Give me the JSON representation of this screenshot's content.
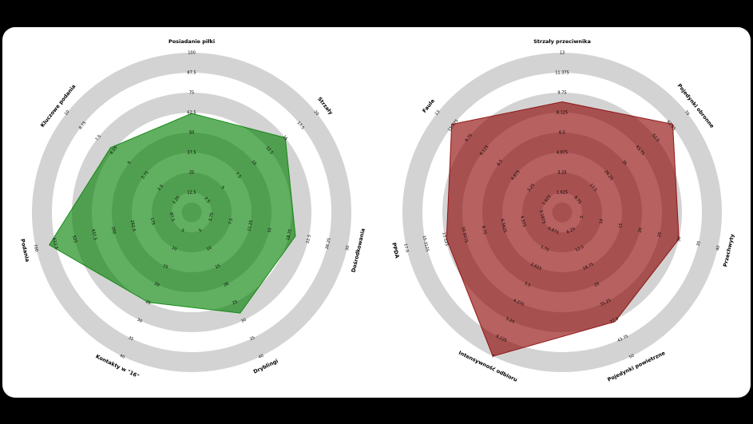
{
  "page": {
    "background_color": "#000000",
    "canvas_color": "#ffffff"
  },
  "chart_data": [
    {
      "type": "radar",
      "side": "left",
      "rings": 8,
      "ring_color": "#d3d3d3",
      "bg_color": "#ffffff",
      "polygon_color": "#008000",
      "polygon_alpha": 0.62,
      "legend_position": "none",
      "grid": "concentric-circles",
      "params": [
        {
          "label": "Posiadanie piłki",
          "min": 0,
          "max": 100,
          "value": 62
        },
        {
          "label": "Strzały",
          "min": 0,
          "max": 20,
          "value": 15
        },
        {
          "label": "Dośrodkowania",
          "min": 0,
          "max": 30,
          "value": 20
        },
        {
          "label": "Dryblingi",
          "min": 0,
          "max": 40,
          "value": 28
        },
        {
          "label": "Kontakty w \"16\"",
          "min": 0,
          "max": 40,
          "value": 25
        },
        {
          "label": "Podania",
          "min": 0,
          "max": 700,
          "value": 640
        },
        {
          "label": "Kluczowe podania",
          "min": 0,
          "max": 10,
          "value": 6.5
        }
      ]
    },
    {
      "type": "radar",
      "side": "right",
      "rings": 8,
      "ring_color": "#d3d3d3",
      "bg_color": "#ffffff",
      "polygon_color": "#8b0000",
      "polygon_alpha": 0.62,
      "legend_position": "none",
      "grid": "concentric-circles",
      "params": [
        {
          "label": "Strzały przeciwnika",
          "min": 0,
          "max": 13,
          "value": 9
        },
        {
          "label": "Pojedynki obronne",
          "min": 0,
          "max": 70,
          "value": 62
        },
        {
          "label": "Przechwyty",
          "min": 0,
          "max": 40,
          "value": 30
        },
        {
          "label": "Pojedynki powietrzne",
          "min": 0,
          "max": 50,
          "value": 38
        },
        {
          "label": "Intensywność odbioru",
          "min": 0,
          "max": 7,
          "value": 7
        },
        {
          "label": "PPDA",
          "min": 0,
          "max": 17.5,
          "value": 13
        },
        {
          "label": "Faule",
          "min": 0,
          "max": 13,
          "value": 11.5
        }
      ]
    }
  ]
}
